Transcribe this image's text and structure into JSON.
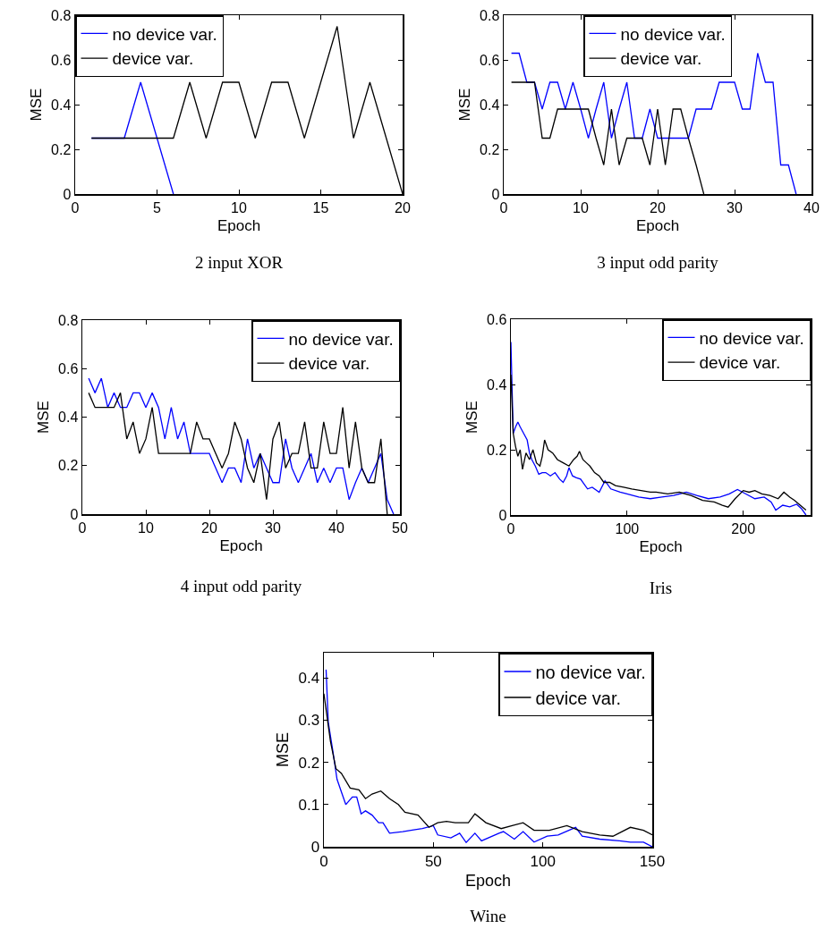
{
  "chart_data": [
    {
      "type": "line",
      "title": "2 input XOR",
      "xlabel": "Epoch",
      "ylabel": "MSE",
      "xlim": [
        0,
        20
      ],
      "xticks": [
        0,
        5,
        10,
        15,
        20
      ],
      "ylim": [
        0,
        0.8
      ],
      "yticks": [
        0,
        0.2,
        0.4,
        0.6,
        0.8
      ],
      "legend": "top left",
      "series": [
        {
          "name": "no device var.",
          "color": "#0000ff",
          "x": [
            1,
            2,
            3,
            4,
            5,
            6
          ],
          "values": [
            0.25,
            0.25,
            0.25,
            0.5,
            0.25,
            0
          ]
        },
        {
          "name": "device var.",
          "color": "#000000",
          "x": [
            1,
            2,
            3,
            4,
            5,
            6,
            7,
            8,
            9,
            10,
            11,
            12,
            13,
            14,
            15,
            16,
            17,
            18,
            19,
            20
          ],
          "values": [
            0.25,
            0.25,
            0.25,
            0.25,
            0.25,
            0.25,
            0.5,
            0.25,
            0.5,
            0.5,
            0.25,
            0.5,
            0.5,
            0.25,
            0.5,
            0.75,
            0.25,
            0.5,
            0.25,
            0
          ]
        }
      ]
    },
    {
      "type": "line",
      "title": "3 input odd parity",
      "xlabel": "Epoch",
      "ylabel": "MSE",
      "xlim": [
        0,
        40
      ],
      "xticks": [
        0,
        10,
        20,
        30,
        40
      ],
      "ylim": [
        0,
        0.8
      ],
      "yticks": [
        0,
        0.2,
        0.4,
        0.6,
        0.8
      ],
      "legend": "top",
      "series": [
        {
          "name": "no device var.",
          "color": "#0000ff",
          "x": [
            1,
            2,
            3,
            4,
            5,
            6,
            7,
            8,
            9,
            10,
            11,
            12,
            13,
            14,
            15,
            16,
            17,
            18,
            19,
            20,
            21,
            22,
            23,
            24,
            25,
            26,
            27,
            28,
            29,
            30,
            31,
            32,
            33,
            34,
            35,
            36,
            37,
            38
          ],
          "values": [
            0.63,
            0.63,
            0.5,
            0.5,
            0.38,
            0.5,
            0.5,
            0.38,
            0.5,
            0.38,
            0.25,
            0.38,
            0.5,
            0.25,
            0.38,
            0.5,
            0.25,
            0.25,
            0.38,
            0.25,
            0.25,
            0.25,
            0.25,
            0.25,
            0.38,
            0.38,
            0.38,
            0.5,
            0.5,
            0.5,
            0.38,
            0.38,
            0.63,
            0.5,
            0.5,
            0.13,
            0.13,
            0
          ]
        },
        {
          "name": "device var.",
          "color": "#000000",
          "x": [
            1,
            2,
            3,
            4,
            5,
            6,
            7,
            8,
            9,
            10,
            11,
            12,
            13,
            14,
            15,
            16,
            17,
            18,
            19,
            20,
            21,
            22,
            23,
            24,
            25,
            26
          ],
          "values": [
            0.5,
            0.5,
            0.5,
            0.5,
            0.25,
            0.25,
            0.38,
            0.38,
            0.38,
            0.38,
            0.38,
            0.25,
            0.13,
            0.38,
            0.13,
            0.25,
            0.25,
            0.25,
            0.13,
            0.38,
            0.13,
            0.38,
            0.38,
            0.25,
            0.13,
            0
          ]
        }
      ]
    },
    {
      "type": "line",
      "title": "4 input odd parity",
      "xlabel": "Epoch",
      "ylabel": "MSE",
      "xlim": [
        0,
        50
      ],
      "xticks": [
        0,
        10,
        20,
        30,
        40,
        50
      ],
      "ylim": [
        0,
        0.8
      ],
      "yticks": [
        0,
        0.2,
        0.4,
        0.6,
        0.8
      ],
      "legend": "top right",
      "series": [
        {
          "name": "no device var.",
          "color": "#0000ff",
          "x": [
            1,
            2,
            3,
            4,
            5,
            6,
            7,
            8,
            9,
            10,
            11,
            12,
            13,
            14,
            15,
            16,
            17,
            18,
            19,
            20,
            21,
            22,
            23,
            24,
            25,
            26,
            27,
            28,
            29,
            30,
            31,
            32,
            33,
            34,
            35,
            36,
            37,
            38,
            39,
            40,
            41,
            42,
            43,
            44,
            45,
            46,
            47,
            48,
            49
          ],
          "values": [
            0.56,
            0.5,
            0.56,
            0.44,
            0.5,
            0.44,
            0.44,
            0.5,
            0.5,
            0.44,
            0.5,
            0.44,
            0.31,
            0.44,
            0.31,
            0.38,
            0.25,
            0.25,
            0.25,
            0.25,
            0.19,
            0.13,
            0.19,
            0.19,
            0.13,
            0.31,
            0.19,
            0.25,
            0.19,
            0.13,
            0.13,
            0.31,
            0.19,
            0.13,
            0.19,
            0.25,
            0.13,
            0.19,
            0.13,
            0.19,
            0.19,
            0.06,
            0.13,
            0.19,
            0.13,
            0.19,
            0.25,
            0.06,
            0
          ]
        },
        {
          "name": "device var.",
          "color": "#000000",
          "x": [
            1,
            2,
            3,
            4,
            5,
            6,
            7,
            8,
            9,
            10,
            11,
            12,
            13,
            14,
            15,
            16,
            17,
            18,
            19,
            20,
            21,
            22,
            23,
            24,
            25,
            26,
            27,
            28,
            29,
            30,
            31,
            32,
            33,
            34,
            35,
            36,
            37,
            38,
            39,
            40,
            41,
            42,
            43,
            44,
            45,
            46,
            47,
            48
          ],
          "values": [
            0.5,
            0.44,
            0.44,
            0.44,
            0.44,
            0.5,
            0.31,
            0.38,
            0.25,
            0.31,
            0.44,
            0.25,
            0.25,
            0.25,
            0.25,
            0.25,
            0.25,
            0.38,
            0.31,
            0.31,
            0.25,
            0.19,
            0.25,
            0.38,
            0.31,
            0.19,
            0.13,
            0.25,
            0.06,
            0.31,
            0.38,
            0.19,
            0.25,
            0.25,
            0.38,
            0.19,
            0.19,
            0.38,
            0.25,
            0.25,
            0.44,
            0.19,
            0.38,
            0.19,
            0.13,
            0.13,
            0.31,
            0
          ]
        }
      ]
    },
    {
      "type": "line",
      "title": "Iris",
      "xlabel": "Epoch",
      "ylabel": "MSE",
      "xlim": [
        0,
        258
      ],
      "xticks": [
        0,
        100,
        200
      ],
      "ylim": [
        0,
        0.6
      ],
      "yticks": [
        0,
        0.2,
        0.4,
        0.6
      ],
      "legend": "top right",
      "series": [
        {
          "name": "no device var.",
          "color": "#0000ff",
          "x": [
            0,
            2,
            4,
            6,
            8,
            11,
            14,
            16,
            18,
            21,
            24,
            27,
            30,
            34,
            38,
            42,
            45,
            48,
            50,
            53,
            56,
            60,
            63,
            66,
            70,
            76,
            81,
            86,
            94,
            100,
            110,
            120,
            130,
            140,
            151,
            160,
            170,
            180,
            188,
            195,
            202,
            210,
            218,
            224,
            228,
            234,
            240,
            246,
            250,
            254
          ],
          "values": [
            0.53,
            0.25,
            0.27,
            0.285,
            0.27,
            0.25,
            0.23,
            0.19,
            0.17,
            0.15,
            0.125,
            0.13,
            0.13,
            0.12,
            0.13,
            0.11,
            0.1,
            0.12,
            0.145,
            0.12,
            0.115,
            0.11,
            0.095,
            0.08,
            0.085,
            0.07,
            0.105,
            0.08,
            0.07,
            0.065,
            0.055,
            0.05,
            0.055,
            0.06,
            0.07,
            0.06,
            0.05,
            0.055,
            0.065,
            0.078,
            0.065,
            0.05,
            0.055,
            0.04,
            0.015,
            0.03,
            0.025,
            0.033,
            0.02,
            0
          ]
        },
        {
          "name": "device var.",
          "color": "#000000",
          "x": [
            0,
            2,
            4,
            6,
            8,
            10,
            13,
            16,
            19,
            22,
            25,
            27,
            29,
            32,
            36,
            40,
            45,
            50,
            54,
            57,
            59,
            62,
            65,
            68,
            72,
            76,
            80,
            85,
            90,
            97,
            104,
            112,
            120,
            125,
            135,
            145,
            155,
            165,
            175,
            182,
            187,
            193,
            200,
            205,
            210,
            216,
            223,
            230,
            235,
            240,
            244,
            249,
            254
          ],
          "values": [
            0.43,
            0.25,
            0.21,
            0.18,
            0.2,
            0.14,
            0.19,
            0.17,
            0.2,
            0.16,
            0.15,
            0.18,
            0.23,
            0.2,
            0.19,
            0.17,
            0.16,
            0.15,
            0.17,
            0.18,
            0.195,
            0.17,
            0.16,
            0.15,
            0.13,
            0.12,
            0.1,
            0.1,
            0.09,
            0.085,
            0.08,
            0.075,
            0.07,
            0.07,
            0.065,
            0.07,
            0.06,
            0.045,
            0.04,
            0.03,
            0.024,
            0.05,
            0.075,
            0.07,
            0.075,
            0.065,
            0.06,
            0.05,
            0.07,
            0.055,
            0.045,
            0.03,
            0.015
          ]
        }
      ]
    },
    {
      "type": "line",
      "title": "Wine",
      "xlabel": "Epoch",
      "ylabel": "MSE",
      "xlim": [
        0,
        150
      ],
      "xticks": [
        0,
        50,
        100,
        150
      ],
      "ylim": [
        0,
        0.46
      ],
      "yticks": [
        0,
        0.1,
        0.2,
        0.3,
        0.4
      ],
      "legend": "top right",
      "series": [
        {
          "name": "no device var.",
          "color": "#0000ff",
          "x": [
            1,
            2,
            4,
            6,
            8,
            10,
            13,
            15,
            17,
            19,
            22,
            25,
            27,
            30,
            36,
            41,
            45,
            50,
            52,
            58,
            62,
            65,
            69,
            72,
            80,
            82,
            87,
            91,
            96,
            102,
            107,
            115,
            118,
            126,
            135,
            140,
            146,
            150
          ],
          "values": [
            0.42,
            0.295,
            0.23,
            0.16,
            0.13,
            0.1,
            0.118,
            0.118,
            0.078,
            0.085,
            0.075,
            0.057,
            0.057,
            0.032,
            0.036,
            0.04,
            0.043,
            0.05,
            0.028,
            0.021,
            0.032,
            0.01,
            0.032,
            0.014,
            0.032,
            0.036,
            0.018,
            0.036,
            0.011,
            0.025,
            0.028,
            0.046,
            0.025,
            0.018,
            0.014,
            0.011,
            0.011,
            0
          ]
        },
        {
          "name": "device var.",
          "color": "#000000",
          "x": [
            0,
            3,
            5.5,
            8,
            12,
            16,
            19,
            22,
            26,
            30,
            34,
            37,
            43,
            48,
            52,
            56,
            60,
            66,
            69,
            74,
            81,
            86,
            91,
            96,
            103,
            111,
            118,
            126,
            132,
            140,
            146,
            150
          ],
          "values": [
            0.363,
            0.25,
            0.185,
            0.174,
            0.139,
            0.135,
            0.114,
            0.125,
            0.132,
            0.114,
            0.1,
            0.082,
            0.075,
            0.046,
            0.057,
            0.06,
            0.057,
            0.057,
            0.078,
            0.057,
            0.043,
            0.05,
            0.057,
            0.039,
            0.039,
            0.05,
            0.036,
            0.028,
            0.025,
            0.046,
            0.039,
            0.028
          ]
        }
      ]
    }
  ]
}
